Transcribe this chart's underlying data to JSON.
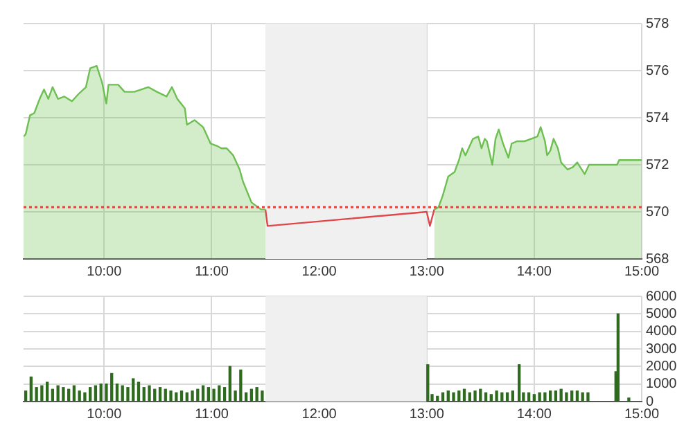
{
  "chart_data": [
    {
      "type": "area",
      "xlim": [
        9.25,
        15
      ],
      "ylim": [
        568,
        578
      ],
      "xticks": [
        {
          "value": 10,
          "label": "10:00"
        },
        {
          "value": 11,
          "label": "11:00"
        },
        {
          "value": 12,
          "label": "12:00"
        },
        {
          "value": 13,
          "label": "13:00"
        },
        {
          "value": 14,
          "label": "14:00"
        },
        {
          "value": 15,
          "label": "15:00"
        }
      ],
      "yticks": [
        568,
        570,
        572,
        574,
        576,
        578
      ],
      "grid": true,
      "legend": false,
      "marker": "none",
      "series": [
        {
          "type": "area",
          "color": "#6cbf50",
          "x": [
            9.25,
            9.27,
            9.31,
            9.35,
            9.4,
            9.44,
            9.48,
            9.52,
            9.57,
            9.63,
            9.7,
            9.76,
            9.83,
            9.87,
            9.93,
            9.98,
            10.02,
            10.04,
            10.13,
            10.19,
            10.28,
            10.41,
            10.49,
            10.58,
            10.63,
            10.68,
            10.75,
            10.77,
            10.84,
            10.92,
            10.99,
            11.05,
            11.09,
            11.14,
            11.2,
            11.26,
            11.29,
            11.37,
            11.46,
            11.5
          ],
          "values": [
            573.2,
            573.3,
            574.1,
            574.2,
            574.8,
            575.2,
            574.8,
            575.3,
            574.8,
            574.9,
            574.7,
            575.0,
            575.3,
            576.1,
            576.2,
            575.5,
            574.6,
            575.4,
            575.4,
            575.1,
            575.1,
            575.3,
            575.1,
            574.9,
            575.3,
            574.8,
            574.4,
            573.7,
            573.9,
            573.6,
            572.9,
            572.8,
            572.7,
            572.7,
            572.4,
            571.8,
            571.3,
            570.4,
            570.1,
            570.1
          ]
        },
        {
          "type": "area",
          "color": "#6cbf50",
          "x": [
            13.07,
            13.11,
            13.15,
            13.2,
            13.26,
            13.3,
            13.33,
            13.36,
            13.43,
            13.48,
            13.51,
            13.54,
            13.56,
            13.61,
            13.64,
            13.67,
            13.71,
            13.76,
            13.79,
            13.84,
            13.91,
            13.97,
            14.03,
            14.06,
            14.1,
            14.12,
            14.15,
            14.18,
            14.22,
            14.25,
            14.31,
            14.36,
            14.4,
            14.47,
            14.51,
            14.77,
            14.79,
            15.0
          ],
          "values": [
            570.1,
            570.2,
            570.7,
            571.5,
            571.7,
            572.2,
            572.7,
            572.4,
            573.1,
            573.2,
            572.7,
            573.1,
            573.0,
            572.0,
            573.1,
            573.5,
            572.9,
            572.3,
            572.9,
            573.0,
            573.0,
            573.1,
            573.2,
            573.6,
            573.0,
            572.4,
            572.6,
            573.1,
            572.7,
            572.1,
            571.8,
            571.9,
            572.1,
            571.6,
            572.0,
            572.0,
            572.2,
            572.2
          ]
        },
        {
          "type": "line",
          "color": "#e0464a",
          "x": [
            11.5,
            11.52,
            13.0,
            13.03,
            13.07
          ],
          "values": [
            570.1,
            569.4,
            570.0,
            569.4,
            570.1
          ]
        }
      ],
      "ref_lines": [
        {
          "axis": "y",
          "value": 570.2,
          "color": "#e8413c",
          "line_style": "dotted"
        }
      ],
      "bands": [
        {
          "axis": "x",
          "from": 11.5,
          "to": 13,
          "color": "#f0f0f0"
        }
      ]
    },
    {
      "type": "bar",
      "xlim": [
        9.25,
        15
      ],
      "ylim": [
        0,
        6000
      ],
      "xticks": [
        {
          "value": 10,
          "label": "10:00"
        },
        {
          "value": 11,
          "label": "11:00"
        },
        {
          "value": 12,
          "label": "12:00"
        },
        {
          "value": 13,
          "label": "13:00"
        },
        {
          "value": 14,
          "label": "14:00"
        },
        {
          "value": 15,
          "label": "15:00"
        }
      ],
      "yticks": [
        0,
        1000,
        2000,
        3000,
        4000,
        5000,
        6000
      ],
      "grid": true,
      "legend": false,
      "color": "#2e6b1f",
      "x": [
        9.27,
        9.32,
        9.37,
        9.42,
        9.47,
        9.52,
        9.57,
        9.62,
        9.67,
        9.72,
        9.77,
        9.82,
        9.87,
        9.92,
        9.97,
        10.02,
        10.07,
        10.12,
        10.17,
        10.22,
        10.27,
        10.32,
        10.37,
        10.42,
        10.47,
        10.52,
        10.57,
        10.62,
        10.67,
        10.72,
        10.77,
        10.82,
        10.87,
        10.92,
        10.97,
        11.02,
        11.07,
        11.12,
        11.17,
        11.22,
        11.27,
        11.32,
        11.37,
        11.42,
        11.47,
        13.01,
        13.05,
        13.1,
        13.15,
        13.2,
        13.25,
        13.3,
        13.35,
        13.4,
        13.45,
        13.5,
        13.55,
        13.6,
        13.65,
        13.7,
        13.75,
        13.8,
        13.86,
        13.9,
        13.95,
        14.0,
        14.05,
        14.1,
        14.15,
        14.2,
        14.25,
        14.3,
        14.35,
        14.4,
        14.45,
        14.5,
        14.76,
        14.78,
        14.88
      ],
      "values": [
        600,
        1400,
        800,
        900,
        1100,
        700,
        900,
        800,
        700,
        900,
        600,
        500,
        800,
        900,
        1000,
        1000,
        1600,
        1000,
        900,
        800,
        1300,
        1100,
        800,
        900,
        700,
        800,
        700,
        600,
        500,
        600,
        500,
        600,
        700,
        900,
        800,
        700,
        900,
        800,
        2000,
        600,
        1800,
        500,
        700,
        800,
        600,
        2100,
        400,
        300,
        500,
        600,
        500,
        600,
        700,
        500,
        600,
        700,
        500,
        400,
        600,
        500,
        500,
        600,
        2100,
        500,
        500,
        400,
        500,
        500,
        600,
        600,
        700,
        500,
        600,
        600,
        500,
        500,
        1700,
        5000,
        200
      ],
      "bands": [
        {
          "axis": "x",
          "from": 11.5,
          "to": 13,
          "color": "#f0f0f0"
        }
      ]
    }
  ]
}
